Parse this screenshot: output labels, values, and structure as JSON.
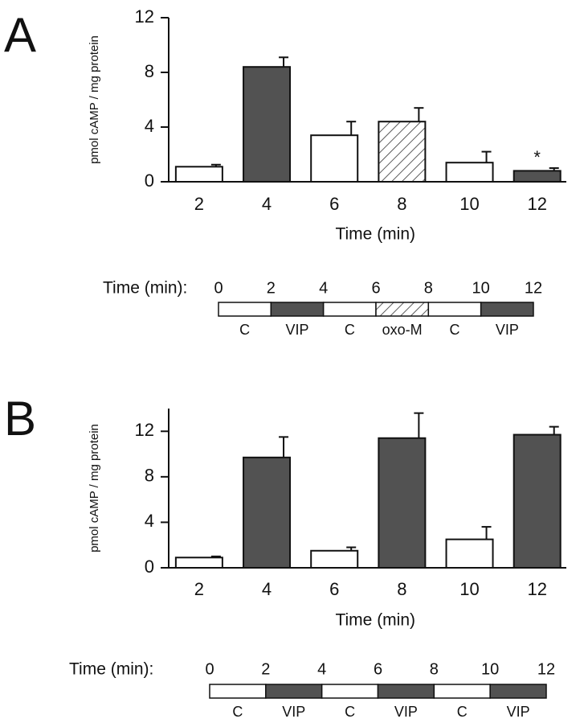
{
  "chart_data": [
    {
      "type": "bar",
      "panel_label": "A",
      "x_label": "Time (min)",
      "y_label": "pmol cAMP / mg protein",
      "categories": [
        "2",
        "4",
        "6",
        "8",
        "10",
        "12"
      ],
      "values": [
        1.1,
        8.4,
        3.4,
        4.4,
        1.4,
        0.8
      ],
      "errors": [
        0.15,
        0.7,
        1.0,
        1.0,
        0.8,
        0.2
      ],
      "bar_styles": [
        "white",
        "dark",
        "white",
        "hatch",
        "white",
        "dark"
      ],
      "bar_annotations": [
        null,
        null,
        null,
        null,
        null,
        "*"
      ],
      "ylim": [
        0,
        12
      ],
      "yticks": [
        0,
        4,
        8,
        12
      ],
      "protocol": {
        "title": "Time (min):",
        "ticks": [
          0,
          2,
          4,
          6,
          8,
          10,
          12
        ],
        "segments": [
          {
            "label": "C",
            "style": "white"
          },
          {
            "label": "VIP",
            "style": "dark"
          },
          {
            "label": "C",
            "style": "white"
          },
          {
            "label": "oxo-M",
            "style": "hatch"
          },
          {
            "label": "C",
            "style": "white"
          },
          {
            "label": "VIP",
            "style": "dark"
          }
        ]
      }
    },
    {
      "type": "bar",
      "panel_label": "B",
      "x_label": "Time (min)",
      "y_label": "pmol cAMP / mg protein",
      "categories": [
        "2",
        "4",
        "6",
        "8",
        "10",
        "12"
      ],
      "values": [
        0.9,
        9.7,
        1.5,
        11.4,
        2.5,
        11.7
      ],
      "errors": [
        0.1,
        1.8,
        0.3,
        2.2,
        1.1,
        0.7
      ],
      "bar_styles": [
        "white",
        "dark",
        "white",
        "dark",
        "white",
        "dark"
      ],
      "bar_annotations": [
        null,
        null,
        null,
        null,
        null,
        null
      ],
      "ylim": [
        0,
        14
      ],
      "yticks": [
        0,
        4,
        8,
        12
      ],
      "protocol": {
        "title": "Time (min):",
        "ticks": [
          0,
          2,
          4,
          6,
          8,
          10,
          12
        ],
        "segments": [
          {
            "label": "C",
            "style": "white"
          },
          {
            "label": "VIP",
            "style": "dark"
          },
          {
            "label": "C",
            "style": "white"
          },
          {
            "label": "VIP",
            "style": "dark"
          },
          {
            "label": "C",
            "style": "white"
          },
          {
            "label": "VIP",
            "style": "dark"
          }
        ]
      }
    }
  ]
}
